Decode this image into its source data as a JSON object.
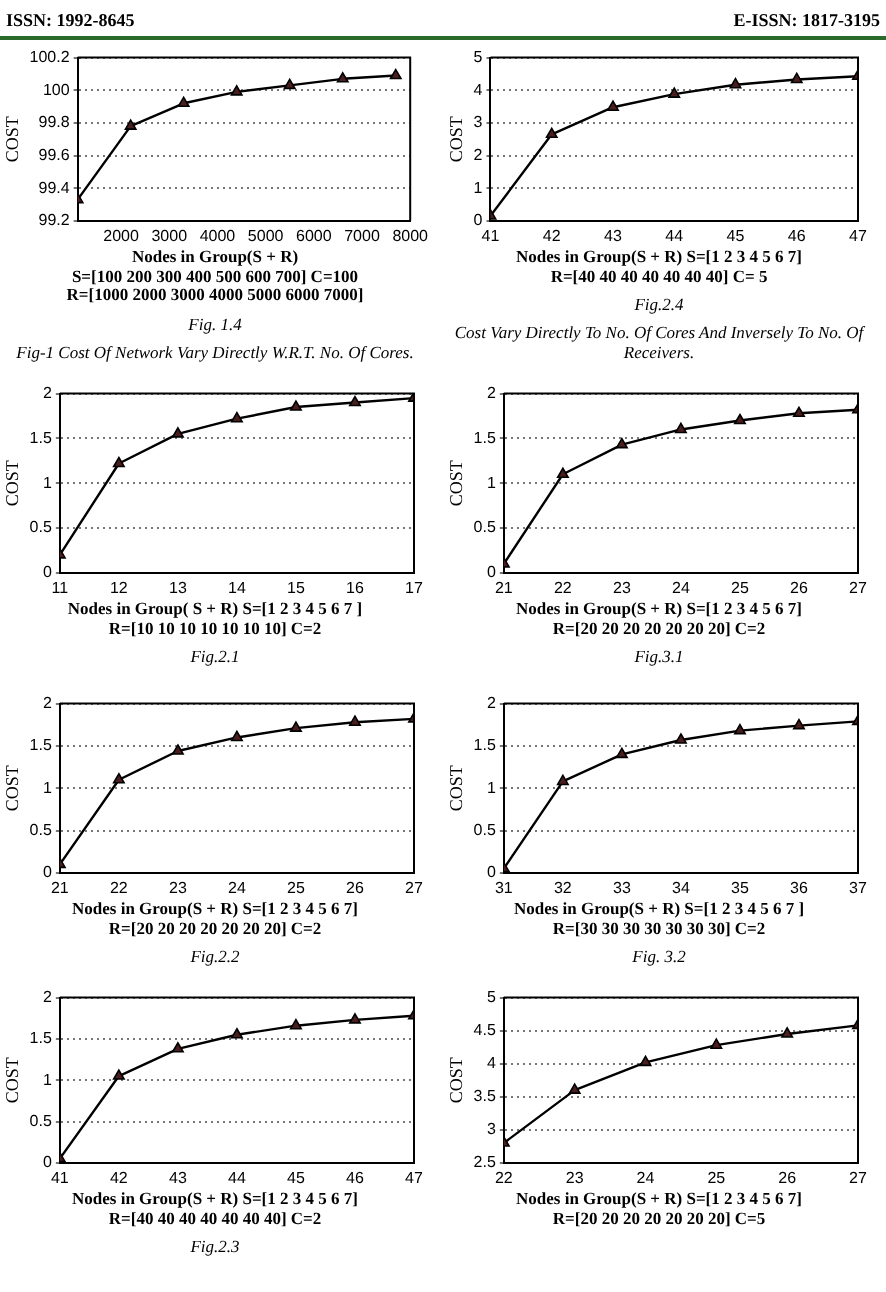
{
  "chart_data": [
    {
      "type": "line",
      "x": [
        1100,
        2200,
        3300,
        4400,
        5500,
        6600,
        7700
      ],
      "series": [
        {
          "color": "#000000",
          "values": [
            99.33,
            99.78,
            99.92,
            99.99,
            100.03,
            100.07,
            100.09
          ]
        }
      ],
      "xlim": [
        1100,
        8000
      ],
      "xticks": [
        2000,
        3000,
        4000,
        5000,
        6000,
        7000,
        8000
      ],
      "ylim": [
        99.2,
        100.2
      ],
      "yticks": [
        99.2,
        99.4,
        99.6,
        99.8,
        100,
        100.2
      ],
      "ylabel": "COST",
      "xlabel": "Nodes in Group(S + R)\nS=[100 200 300 400 500 600 700] C=100\nR=[1000 2000 3000 4000 5000 6000 7000]",
      "grid": "y",
      "marker": "triangle",
      "line_style": "solid",
      "legend": false,
      "annotations": [
        "ISSN: 1992-8645",
        "Fig. 1.4",
        "Fig-1 Cost Of Network Vary Directly W.R.T. No. Of Cores."
      ]
    },
    {
      "type": "line",
      "x": [
        41,
        42,
        43,
        44,
        45,
        46,
        47
      ],
      "series": [
        {
          "color": "#000000",
          "values": [
            0.15,
            2.65,
            3.48,
            3.88,
            4.17,
            4.33,
            4.43
          ]
        }
      ],
      "xlim": [
        41,
        47
      ],
      "xticks": [
        41,
        42,
        43,
        44,
        45,
        46,
        47
      ],
      "ylim": [
        0,
        5
      ],
      "yticks": [
        0,
        1,
        2,
        3,
        4,
        5
      ],
      "ylabel": "COST",
      "xlabel": "Nodes in Group(S + R) S=[1 2 3 4 5 6 7]\nR=[40 40 40 40 40 40 40] C= 5",
      "grid": "y",
      "marker": "triangle",
      "line_style": "solid",
      "legend": false,
      "annotations": [
        "E-ISSN: 1817-3195",
        "Fig.2.4",
        "Cost Vary Directly To No. Of Cores And Inversely To No. Of Receivers."
      ]
    },
    {
      "type": "line",
      "x": [
        11,
        12,
        13,
        14,
        15,
        16,
        17
      ],
      "series": [
        {
          "color": "#000000",
          "values": [
            0.2,
            1.22,
            1.55,
            1.72,
            1.85,
            1.9,
            1.95
          ]
        }
      ],
      "xlim": [
        11,
        17
      ],
      "xticks": [
        11,
        12,
        13,
        14,
        15,
        16,
        17
      ],
      "ylim": [
        0,
        2
      ],
      "yticks": [
        0,
        0.5,
        1,
        1.5,
        2
      ],
      "ylabel": "COST",
      "xlabel": "Nodes in Group( S + R) S=[1 2 3 4 5 6 7 ]\nR=[10 10 10 10 10 10 10] C=2",
      "grid": "y",
      "marker": "triangle",
      "line_style": "solid",
      "legend": false,
      "annotations": [
        "Fig.2.1"
      ]
    },
    {
      "type": "line",
      "x": [
        21,
        22,
        23,
        24,
        25,
        26,
        27
      ],
      "series": [
        {
          "color": "#000000",
          "values": [
            0.1,
            1.1,
            1.43,
            1.6,
            1.7,
            1.78,
            1.82
          ]
        }
      ],
      "xlim": [
        21,
        27
      ],
      "xticks": [
        21,
        22,
        23,
        24,
        25,
        26,
        27
      ],
      "ylim": [
        0,
        2
      ],
      "yticks": [
        0,
        0.5,
        1,
        1.5,
        2
      ],
      "ylabel": "COST",
      "xlabel": "Nodes in Group(S + R) S=[1 2 3 4 5 6 7]\nR=[20 20 20 20 20 20 20] C=2",
      "grid": "y",
      "marker": "triangle",
      "line_style": "solid",
      "legend": false,
      "annotations": [
        "Fig.3.1"
      ]
    },
    {
      "type": "line",
      "x": [
        21,
        22,
        23,
        24,
        25,
        26,
        27
      ],
      "series": [
        {
          "color": "#000000",
          "values": [
            0.1,
            1.1,
            1.44,
            1.6,
            1.71,
            1.78,
            1.82
          ]
        }
      ],
      "xlim": [
        21,
        27
      ],
      "xticks": [
        21,
        22,
        23,
        24,
        25,
        26,
        27
      ],
      "ylim": [
        0,
        2
      ],
      "yticks": [
        0,
        0.5,
        1,
        1.5,
        2
      ],
      "ylabel": "COST",
      "xlabel": "Nodes in Group(S + R) S=[1 2 3 4 5 6 7]\nR=[20 20 20 20 20 20 20] C=2",
      "grid": "y",
      "marker": "triangle",
      "line_style": "solid",
      "legend": false,
      "annotations": [
        "Fig.2.2"
      ]
    },
    {
      "type": "line",
      "x": [
        31,
        32,
        33,
        34,
        35,
        36,
        37
      ],
      "series": [
        {
          "color": "#000000",
          "values": [
            0.05,
            1.08,
            1.4,
            1.57,
            1.68,
            1.74,
            1.79
          ]
        }
      ],
      "xlim": [
        31,
        37
      ],
      "xticks": [
        31,
        32,
        33,
        34,
        35,
        36,
        37
      ],
      "ylim": [
        0,
        2
      ],
      "yticks": [
        0,
        0.5,
        1,
        1.5,
        2
      ],
      "ylabel": "COST",
      "xlabel": "Nodes in Group(S + R) S=[1 2 3 4 5 6 7 ]\nR=[30 30 30 30 30 30 30] C=2",
      "grid": "y",
      "marker": "triangle",
      "line_style": "solid",
      "legend": false,
      "annotations": [
        "Fig. 3.2"
      ]
    },
    {
      "type": "line",
      "x": [
        41,
        42,
        43,
        44,
        45,
        46,
        47
      ],
      "series": [
        {
          "color": "#000000",
          "values": [
            0.05,
            1.05,
            1.38,
            1.55,
            1.66,
            1.73,
            1.78
          ]
        }
      ],
      "xlim": [
        41,
        47
      ],
      "xticks": [
        41,
        42,
        43,
        44,
        45,
        46,
        47
      ],
      "ylim": [
        0,
        2
      ],
      "yticks": [
        0,
        0.5,
        1,
        1.5,
        2
      ],
      "ylabel": "COST",
      "xlabel": "Nodes in Group(S + R) S=[1 2 3 4 5 6 7]\nR=[40 40 40 40 40 40 40] C=2",
      "grid": "y",
      "marker": "triangle",
      "line_style": "solid",
      "legend": false,
      "annotations": [
        "Fig.2.3"
      ]
    },
    {
      "type": "line",
      "x": [
        22,
        23,
        24,
        25,
        26,
        27
      ],
      "series": [
        {
          "color": "#000000",
          "values": [
            2.8,
            3.6,
            4.02,
            4.28,
            4.45,
            4.58
          ]
        }
      ],
      "xlim": [
        22,
        27
      ],
      "xticks": [
        22,
        23,
        24,
        25,
        26,
        27
      ],
      "ylim": [
        2.5,
        5
      ],
      "yticks": [
        2.5,
        3,
        3.5,
        4,
        4.5,
        5
      ],
      "ylabel": "COST",
      "xlabel": "Nodes in Group(S + R) S=[1 2 3 4 5 6 7]\nR=[20 20 20 20 20 20 20] C=5",
      "grid": "y",
      "marker": "triangle",
      "line_style": "solid",
      "legend": false
    }
  ]
}
